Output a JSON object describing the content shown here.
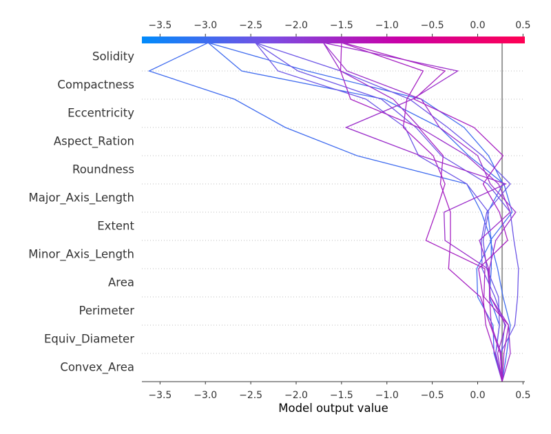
{
  "chart_data": {
    "type": "line",
    "orientation": "decision-plot",
    "xlabel": "Model output value",
    "ylabel": "",
    "xlim": [
      -3.7,
      0.52
    ],
    "xticks": [
      -3.5,
      -3.0,
      -2.5,
      -2.0,
      -1.5,
      -1.0,
      -0.5,
      0.0,
      0.5
    ],
    "xtick_labels": [
      "−3.5",
      "−3.0",
      "−2.5",
      "−2.0",
      "−1.5",
      "−1.0",
      "−0.5",
      "0.0",
      "0.5"
    ],
    "base_value": 0.27,
    "features": [
      "Solidity",
      "Compactness",
      "Eccentricity",
      "Aspect_Ration",
      "Roundness",
      "Major_Axis_Length",
      "Extent",
      "Minor_Axis_Length",
      "Area",
      "Perimeter",
      "Equiv_Diameter",
      "Convex_Area"
    ],
    "colorbar": {
      "colors": [
        "#008bfb",
        "#7a4ee3",
        "#c800a8",
        "#ff0052"
      ],
      "range": [
        -3.7,
        0.52
      ]
    },
    "series": [
      {
        "values": [
          0.27,
          0.32,
          0.36,
          0.28,
          0.22,
          0.14,
          0.38,
          0.29,
          -0.1,
          -0.42,
          -1.03,
          -2.6,
          -2.97
        ]
      },
      {
        "values": [
          0.27,
          0.2,
          0.24,
          0.13,
          0.15,
          0.15,
          0.04,
          -0.12,
          -1.33,
          -2.12,
          -2.68,
          -3.62,
          -2.97
        ]
      },
      {
        "values": [
          0.27,
          0.18,
          0.17,
          0.0,
          -0.01,
          0.15,
          0.11,
          0.28,
          0.12,
          -0.15,
          -0.62,
          -1.88,
          -2.97
        ]
      },
      {
        "values": [
          0.27,
          0.25,
          0.41,
          0.44,
          0.45,
          0.4,
          0.36,
          0.11,
          -0.4,
          -0.68,
          -1.06,
          -1.98,
          -2.45
        ]
      },
      {
        "values": [
          0.27,
          0.26,
          0.3,
          0.19,
          0.05,
          0.04,
          0.1,
          0.36,
          0.05,
          -0.33,
          -0.75,
          -1.51,
          -2.45
        ]
      },
      {
        "values": [
          0.27,
          0.2,
          0.24,
          0.23,
          0.1,
          0.06,
          0.12,
          -0.12,
          -0.65,
          -0.8,
          -1.23,
          -2.2,
          -2.45
        ]
      },
      {
        "values": [
          0.27,
          0.36,
          0.34,
          0.14,
          0.12,
          0.02,
          0.36,
          0.23,
          -0.12,
          -0.64,
          -0.93,
          -1.51,
          -1.7
        ]
      },
      {
        "values": [
          0.27,
          0.26,
          0.15,
          0.13,
          0.13,
          0.2,
          0.42,
          0.14,
          0.0,
          -0.42,
          -0.62,
          -1.44,
          -1.7
        ]
      },
      {
        "values": [
          0.27,
          0.22,
          0.31,
          0.14,
          0.11,
          -0.36,
          -0.37,
          0.31,
          -0.63,
          -1.45,
          -0.72,
          -0.22,
          -1.7
        ]
      },
      {
        "values": [
          0.27,
          0.25,
          0.14,
          0.03,
          -0.32,
          -0.3,
          -0.3,
          -0.41,
          -0.38,
          -0.65,
          -1.4,
          -1.51,
          -1.5
        ]
      },
      {
        "values": [
          0.27,
          0.29,
          0.34,
          0.07,
          0.08,
          -0.57,
          -0.46,
          -0.36,
          -0.49,
          -0.82,
          -0.78,
          -0.6,
          -1.5
        ]
      },
      {
        "values": [
          0.27,
          0.19,
          0.09,
          0.06,
          0.01,
          0.33,
          0.24,
          0.06,
          0.28,
          -0.04,
          -0.7,
          -0.36,
          -1.48
        ]
      }
    ]
  }
}
